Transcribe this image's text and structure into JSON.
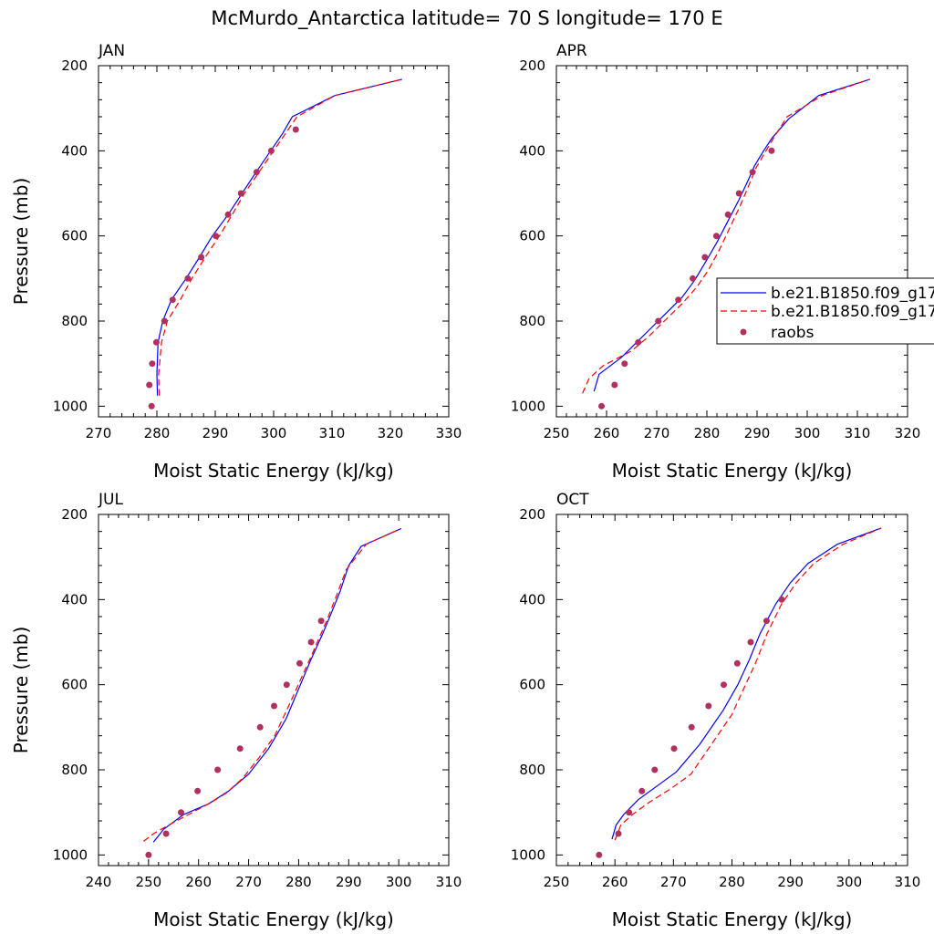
{
  "title": "McMurdo_Antarctica  latitude= 70 S longitude= 170 E",
  "colors": {
    "model1": "#0000ff",
    "model2": "#ff0000",
    "raobs": "#b03060"
  },
  "legend": {
    "entries": [
      {
        "label": "b.e21.B1850.f09_g17",
        "style": "solid",
        "color": "#0000ff"
      },
      {
        "label": "b.e21.B1850.f09_g17",
        "style": "dashed",
        "color": "#ff0000"
      },
      {
        "label": "raobs",
        "style": "marker",
        "color": "#b03060"
      }
    ]
  },
  "chart_data": [
    {
      "type": "line",
      "panel_label": "JAN",
      "xlabel": "Moist Static Energy (kJ/kg)",
      "ylabel": "Pressure (mb)",
      "xlim": [
        270,
        330
      ],
      "ylim": [
        1025,
        200
      ],
      "xticks": [
        270,
        280,
        290,
        300,
        310,
        320,
        330
      ],
      "yticks": [
        200,
        400,
        600,
        800,
        1000
      ],
      "series": [
        {
          "style": "solid",
          "color": "#0000ff",
          "points": [
            [
              280.1,
              975
            ],
            [
              280.0,
              925
            ],
            [
              280.2,
              850
            ],
            [
              281,
              800
            ],
            [
              282.5,
              750
            ],
            [
              285,
              700
            ],
            [
              287.3,
              650
            ],
            [
              289.5,
              600
            ],
            [
              292.2,
              550
            ],
            [
              294.6,
              500
            ],
            [
              297,
              450
            ],
            [
              299.5,
              400
            ],
            [
              301.5,
              360
            ],
            [
              303.2,
              320
            ],
            [
              310.5,
              270
            ],
            [
              322,
              232
            ]
          ]
        },
        {
          "style": "dashed",
          "color": "#ff0000",
          "points": [
            [
              280.4,
              975
            ],
            [
              280.3,
              925
            ],
            [
              280.8,
              850
            ],
            [
              281.8,
              800
            ],
            [
              284,
              750
            ],
            [
              286,
              700
            ],
            [
              288.3,
              650
            ],
            [
              290.7,
              600
            ],
            [
              292.9,
              550
            ],
            [
              295,
              500
            ],
            [
              297.5,
              450
            ],
            [
              300,
              400
            ],
            [
              302,
              360
            ],
            [
              304,
              320
            ],
            [
              310.5,
              270
            ],
            [
              322,
              232
            ]
          ]
        },
        {
          "style": "marker",
          "color": "#b03060",
          "points": [
            [
              279.1,
              1000
            ],
            [
              278.7,
              950
            ],
            [
              279.2,
              900
            ],
            [
              279.9,
              850
            ],
            [
              281.3,
              800
            ],
            [
              282.7,
              750
            ],
            [
              285.3,
              700
            ],
            [
              287.6,
              650
            ],
            [
              290.1,
              600
            ],
            [
              292.2,
              550
            ],
            [
              294.4,
              500
            ],
            [
              297.1,
              450
            ],
            [
              299.6,
              400
            ],
            [
              303.8,
              350
            ]
          ]
        }
      ]
    },
    {
      "type": "line",
      "panel_label": "APR",
      "xlabel": "Moist Static Energy (kJ/kg)",
      "ylabel": "",
      "xlim": [
        250,
        320
      ],
      "ylim": [
        1025,
        200
      ],
      "xticks": [
        250,
        260,
        270,
        280,
        290,
        300,
        310,
        320
      ],
      "yticks": [
        200,
        400,
        600,
        800,
        1000
      ],
      "series": [
        {
          "style": "solid",
          "color": "#0000ff",
          "points": [
            [
              257.5,
              965
            ],
            [
              258.5,
              925
            ],
            [
              263,
              885
            ],
            [
              266,
              850
            ],
            [
              269,
              815
            ],
            [
              272,
              780
            ],
            [
              275,
              745
            ],
            [
              277.5,
              705
            ],
            [
              279.8,
              660
            ],
            [
              282,
              615
            ],
            [
              284.2,
              565
            ],
            [
              286.4,
              515
            ],
            [
              288.2,
              470
            ],
            [
              289.5,
              435
            ],
            [
              291.3,
              400
            ],
            [
              293,
              370
            ],
            [
              296.3,
              325
            ],
            [
              302.3,
              270
            ],
            [
              312.5,
              232
            ]
          ]
        },
        {
          "style": "dashed",
          "color": "#ff0000",
          "points": [
            [
              255.2,
              970
            ],
            [
              256.5,
              935
            ],
            [
              259.3,
              905
            ],
            [
              265,
              870
            ],
            [
              268.5,
              835
            ],
            [
              271.5,
              800
            ],
            [
              275,
              760
            ],
            [
              278,
              720
            ],
            [
              280.3,
              680
            ],
            [
              282.6,
              630
            ],
            [
              284.6,
              580
            ],
            [
              286.6,
              530
            ],
            [
              288.4,
              480
            ],
            [
              289.8,
              440
            ],
            [
              291.5,
              405
            ],
            [
              293.3,
              370
            ],
            [
              296,
              320
            ],
            [
              303,
              270
            ],
            [
              312.5,
              232
            ]
          ]
        },
        {
          "style": "marker",
          "color": "#b03060",
          "points": [
            [
              259,
              1000
            ],
            [
              261.6,
              950
            ],
            [
              263.6,
              900
            ],
            [
              266.3,
              850
            ],
            [
              270.3,
              800
            ],
            [
              274.3,
              750
            ],
            [
              277.2,
              700
            ],
            [
              279.6,
              650
            ],
            [
              281.9,
              600
            ],
            [
              284.2,
              550
            ],
            [
              286.4,
              500
            ],
            [
              289.1,
              450
            ],
            [
              292.9,
              400
            ]
          ]
        }
      ]
    },
    {
      "type": "line",
      "panel_label": "JUL",
      "xlabel": "Moist Static Energy (kJ/kg)",
      "ylabel": "Pressure (mb)",
      "xlim": [
        240,
        310
      ],
      "ylim": [
        1025,
        200
      ],
      "xticks": [
        240,
        250,
        260,
        270,
        280,
        290,
        300,
        310
      ],
      "yticks": [
        200,
        400,
        600,
        800,
        1000
      ],
      "series": [
        {
          "style": "solid",
          "color": "#0000ff",
          "points": [
            [
              251,
              970
            ],
            [
              253,
              940
            ],
            [
              257,
              905
            ],
            [
              262,
              880
            ],
            [
              266,
              850
            ],
            [
              270,
              810
            ],
            [
              274,
              750
            ],
            [
              277.5,
              680
            ],
            [
              280,
              610
            ],
            [
              282.5,
              540
            ],
            [
              284.8,
              480
            ],
            [
              286.6,
              430
            ],
            [
              288.3,
              380
            ],
            [
              290,
              320
            ],
            [
              292.5,
              275
            ],
            [
              300.5,
              233
            ]
          ]
        },
        {
          "style": "dashed",
          "color": "#ff0000",
          "points": [
            [
              249,
              968
            ],
            [
              251,
              950
            ],
            [
              254,
              930
            ],
            [
              258,
              905
            ],
            [
              262,
              880
            ],
            [
              265.5,
              855
            ],
            [
              268.8,
              820
            ],
            [
              272.2,
              770
            ],
            [
              275.2,
              720
            ],
            [
              278,
              650
            ],
            [
              280.7,
              580
            ],
            [
              283,
              520
            ],
            [
              285.6,
              450
            ],
            [
              287.6,
              390
            ],
            [
              289.5,
              330
            ],
            [
              293.5,
              270
            ],
            [
              300.5,
              233
            ]
          ]
        },
        {
          "style": "marker",
          "color": "#b03060",
          "points": [
            [
              250,
              1000
            ],
            [
              253.5,
              950
            ],
            [
              256.5,
              900
            ],
            [
              259.8,
              850
            ],
            [
              263.8,
              800
            ],
            [
              268.3,
              750
            ],
            [
              272.3,
              700
            ],
            [
              275.1,
              650
            ],
            [
              277.6,
              600
            ],
            [
              280.2,
              550
            ],
            [
              282.5,
              500
            ],
            [
              284.5,
              450
            ]
          ]
        }
      ]
    },
    {
      "type": "line",
      "panel_label": "OCT",
      "xlabel": "Moist Static Energy (kJ/kg)",
      "ylabel": "",
      "xlim": [
        250,
        310
      ],
      "ylim": [
        1025,
        200
      ],
      "xticks": [
        250,
        260,
        270,
        280,
        290,
        300,
        310
      ],
      "yticks": [
        200,
        400,
        600,
        800,
        1000
      ],
      "series": [
        {
          "style": "solid",
          "color": "#0000ff",
          "points": [
            [
              259.5,
              963
            ],
            [
              260.2,
              930
            ],
            [
              261.5,
              905
            ],
            [
              264,
              870
            ],
            [
              267,
              840
            ],
            [
              270.5,
              805
            ],
            [
              274.5,
              740
            ],
            [
              278.5,
              660
            ],
            [
              281,
              600
            ],
            [
              283,
              540
            ],
            [
              284.8,
              480
            ],
            [
              287.5,
              410
            ],
            [
              290,
              360
            ],
            [
              293,
              315
            ],
            [
              298,
              270
            ],
            [
              305.5,
              232
            ]
          ]
        },
        {
          "style": "dashed",
          "color": "#ff0000",
          "points": [
            [
              260,
              965
            ],
            [
              261,
              930
            ],
            [
              263,
              905
            ],
            [
              266,
              875
            ],
            [
              269.5,
              845
            ],
            [
              273,
              810
            ],
            [
              276.5,
              740
            ],
            [
              280,
              670
            ],
            [
              282,
              610
            ],
            [
              284,
              550
            ],
            [
              286,
              480
            ],
            [
              288.5,
              410
            ],
            [
              291,
              360
            ],
            [
              294,
              315
            ],
            [
              299,
              270
            ],
            [
              305.5,
              232
            ]
          ]
        },
        {
          "style": "marker",
          "color": "#b03060",
          "points": [
            [
              257.3,
              1000
            ],
            [
              260.6,
              950
            ],
            [
              262.4,
              900
            ],
            [
              264.6,
              850
            ],
            [
              266.8,
              800
            ],
            [
              270.1,
              750
            ],
            [
              273.1,
              700
            ],
            [
              276,
              650
            ],
            [
              278.6,
              600
            ],
            [
              280.9,
              550
            ],
            [
              283.2,
              500
            ],
            [
              285.9,
              450
            ],
            [
              288.5,
              400
            ]
          ]
        }
      ]
    }
  ]
}
